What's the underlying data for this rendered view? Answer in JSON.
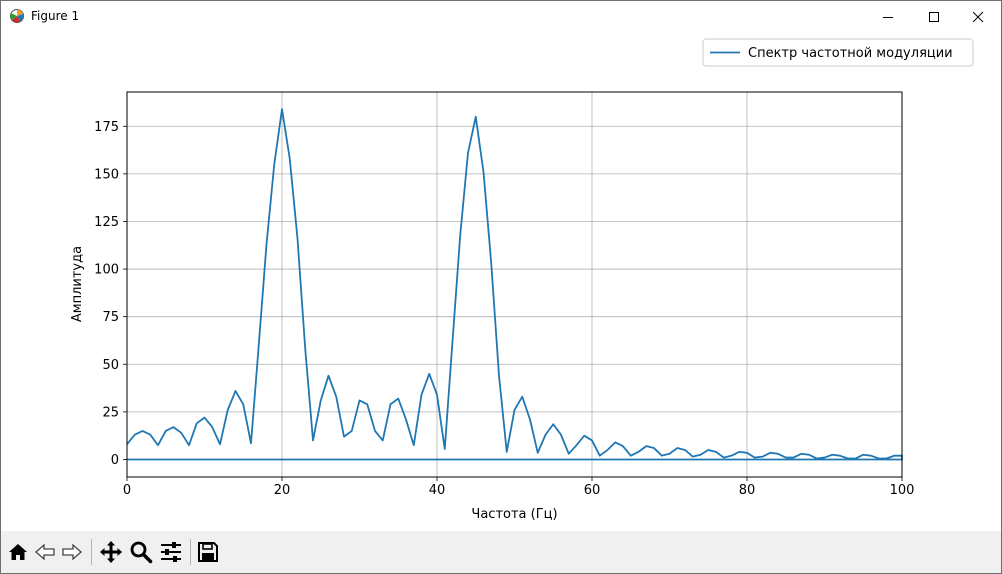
{
  "window": {
    "title": "Figure 1",
    "icons": [
      "matplotlib-icon",
      "minimize-icon",
      "maximize-icon",
      "close-icon"
    ]
  },
  "toolbar": {
    "buttons": [
      "home-icon",
      "back-icon",
      "forward-icon",
      "pan-icon",
      "zoom-icon",
      "configure-subplots-icon",
      "save-icon"
    ]
  },
  "colors": {
    "line": "#1f77b4",
    "grid": "#b0b0b0",
    "toolbar_bg": "#f0f0f0"
  },
  "chart_data": {
    "type": "line",
    "title": "",
    "xlabel": "Частота (Гц)",
    "ylabel": "Амплитуда",
    "xlim": [
      0,
      100
    ],
    "ylim": [
      -9.2,
      193
    ],
    "xticks": [
      0,
      20,
      40,
      60,
      80,
      100
    ],
    "yticks": [
      0,
      25,
      50,
      75,
      100,
      125,
      150,
      175
    ],
    "grid": true,
    "legend_position": "upper-right",
    "series": [
      {
        "name": "Спектр частотной модуляции",
        "x": [
          0,
          1,
          2,
          3,
          4,
          5,
          6,
          7,
          8,
          9,
          10,
          11,
          12,
          13,
          14,
          15,
          16,
          17,
          18,
          19,
          20,
          21,
          22,
          23,
          24,
          25,
          26,
          27,
          28,
          29,
          30,
          31,
          32,
          33,
          34,
          35,
          36,
          37,
          38,
          39,
          40,
          41,
          42,
          43,
          44,
          45,
          46,
          47,
          48,
          49,
          50,
          51,
          52,
          53,
          54,
          55,
          56,
          57,
          58,
          59,
          60,
          61,
          62,
          63,
          64,
          65,
          66,
          67,
          68,
          69,
          70,
          71,
          72,
          73,
          74,
          75,
          76,
          77,
          78,
          79,
          80,
          81,
          82,
          83,
          84,
          85,
          86,
          87,
          88,
          89,
          90,
          91,
          92,
          93,
          94,
          95,
          96,
          97,
          98,
          99,
          100,
          100,
          0
        ],
        "y": [
          8,
          13,
          15,
          13,
          7.5,
          15,
          17,
          14,
          7.5,
          19,
          22,
          17,
          8,
          26,
          36,
          29,
          8.5,
          60,
          113,
          155,
          184,
          158,
          116,
          58,
          10,
          31,
          44,
          33,
          12,
          15,
          31,
          29,
          15,
          10,
          29,
          32,
          21,
          7.5,
          34,
          45,
          34,
          5.5,
          62,
          118,
          161,
          180,
          151,
          103,
          44,
          4,
          26,
          33,
          21,
          3.5,
          13,
          18.5,
          13,
          3,
          7.5,
          12.5,
          10,
          2,
          5,
          9,
          7,
          2,
          4,
          7,
          6,
          2,
          3,
          6,
          5,
          1.5,
          2.5,
          5,
          4,
          1,
          2,
          4,
          3.5,
          1,
          1.5,
          3.5,
          3,
          1,
          1,
          3,
          2.5,
          0.5,
          1,
          2.5,
          2,
          0.5,
          0.5,
          2.5,
          2,
          0.5,
          0.5,
          2,
          2,
          0,
          0
        ]
      }
    ]
  }
}
